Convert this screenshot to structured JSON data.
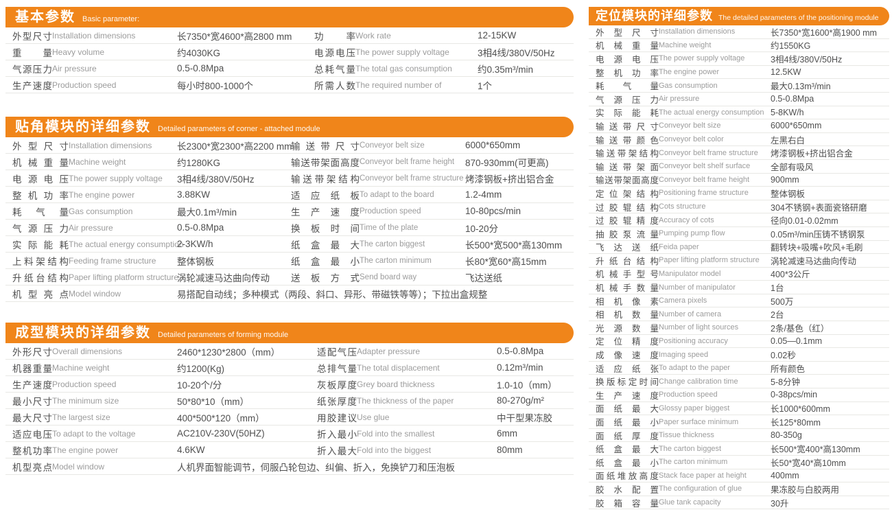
{
  "accent_color": "#F0851A",
  "text_color": "#4f4f4f",
  "muted_text_color": "#9c9c9c",
  "sections": [
    {
      "title_cn": "基本参数",
      "title_en": "Basic parameter:",
      "left_rows": [
        {
          "cn": "外型尺寸",
          "en": "Installation dimensions",
          "value": "长7350*宽4600*高2800 mm"
        },
        {
          "cn": "重量",
          "en": "Heavy volume",
          "value": "约4030KG"
        },
        {
          "cn": "气源压力",
          "en": "Air pressure",
          "value": "0.5-0.8Mpa"
        },
        {
          "cn": "生产速度",
          "en": "Production speed",
          "value": "每小时800-1000个"
        }
      ],
      "right_rows": [
        {
          "cn": "功率",
          "en": "Work rate",
          "value": "12-15KW"
        },
        {
          "cn": "电源电压",
          "en": "The power supply voltage",
          "value": "3相4线/380V/50Hz"
        },
        {
          "cn": "总耗气量",
          "en": "The total gas consumption",
          "value": "约0.35m³/min"
        },
        {
          "cn": "所需人数",
          "en": "The required number of",
          "value": "1个"
        }
      ]
    },
    {
      "title_cn": "贴角模块的详细参数",
      "title_en": "Detailed parameters of corner - attached module",
      "left_rows": [
        {
          "cn": "外型尺寸",
          "en": "Installation dimensions",
          "value": "长2300*宽2300*高2200 mm"
        },
        {
          "cn": "机械重量",
          "en": "Machine weight",
          "value": "约1280KG"
        },
        {
          "cn": "电源电压",
          "en": "The power supply voltage",
          "value": "3相4线/380V/50Hz"
        },
        {
          "cn": "整机功率",
          "en": "The engine power",
          "value": "3.88KW"
        },
        {
          "cn": "耗气量",
          "en": "Gas consumption",
          "value": "最大0.1m³/min"
        },
        {
          "cn": "气源压力",
          "en": "Air pressure",
          "value": "0.5-0.8Mpa"
        },
        {
          "cn": "实际能耗",
          "en": "The actual energy consumption",
          "value": "2-3KW/h"
        },
        {
          "cn": "上料架结构",
          "en": "Feeding frame structure",
          "value": "整体钢板"
        },
        {
          "cn": "升纸台结构",
          "en": "Paper lifting platform structure",
          "value": "涡轮减速马达曲向传动"
        }
      ],
      "right_rows": [
        {
          "cn": "输送带尺寸",
          "en": "Conveyor belt size",
          "value": "6000*650mm"
        },
        {
          "cn": "输送带架面高度",
          "en": "Conveyor belt frame height",
          "value": "870-930mm(可更高)"
        },
        {
          "cn": "输送带架结构",
          "en": "Conveyor belt frame structure",
          "value": "烤漆钢板+挤出铝合金"
        },
        {
          "cn": "适应纸板",
          "en": "To adapt to the board",
          "value": "1.2-4mm"
        },
        {
          "cn": "生产速度",
          "en": "Production speed",
          "value": "10-80pcs/min"
        },
        {
          "cn": "换板时间",
          "en": "Time of the plate",
          "value": "10-20分"
        },
        {
          "cn": "纸盒最大",
          "en": "The carton biggest",
          "value": "长500*宽500*高130mm"
        },
        {
          "cn": "纸盒最小",
          "en": "The carton minimum",
          "value": "长80*宽60*高15mm"
        },
        {
          "cn": "送板方式",
          "en": "Send board way",
          "value": "飞达送纸"
        }
      ],
      "span_row": {
        "cn": "机型亮点",
        "en": "Model window",
        "value": "易搭配自动线；多种模式（两段、斜口、异形、带磁铁等等）；下拉出盒规整"
      }
    },
    {
      "title_cn": "成型模块的详细参数",
      "title_en": "Detailed parameters of forming module",
      "left_rows": [
        {
          "cn": "外形尺寸",
          "en": "Overall dimensions",
          "value": "2460*1230*2800（mm）"
        },
        {
          "cn": "机器重量",
          "en": "Machine weight",
          "value": "约1200(Kg)"
        },
        {
          "cn": "生产速度",
          "en": "Production speed",
          "value": "10-20个/分"
        },
        {
          "cn": "最小尺寸",
          "en": "The minimum size",
          "value": "50*80*10（mm）"
        },
        {
          "cn": "最大尺寸",
          "en": "The largest size",
          "value": "400*500*120（mm）"
        },
        {
          "cn": "适应电压",
          "en": "To adapt to the voltage",
          "value": "AC210V-230V(50HZ)"
        },
        {
          "cn": "整机功率",
          "en": "The engine power",
          "value": "4.6KW"
        }
      ],
      "right_rows": [
        {
          "cn": "适配气压",
          "en": "Adapter pressure",
          "value": "0.5-0.8Mpa"
        },
        {
          "cn": "总排气量",
          "en": "The total displacement",
          "value": "0.12m³/min"
        },
        {
          "cn": "灰板厚度",
          "en": "Grey board thickness",
          "value": "1.0-10（mm）"
        },
        {
          "cn": "纸张厚度",
          "en": "The thickness of the paper",
          "value": "80-270g/m²"
        },
        {
          "cn": "用胶建议",
          "en": "Use glue",
          "value": "中干型果冻胶"
        },
        {
          "cn": "折入最小",
          "en": "Fold into the smallest",
          "value": "6mm"
        },
        {
          "cn": "折入最大",
          "en": "Fold into the biggest",
          "value": "80mm"
        }
      ],
      "span_row": {
        "cn": "机型亮点",
        "en": "Model window",
        "value": "人机界面智能调节，伺服凸轮包边、纠偏、折入，免换铲刀和压泡板"
      }
    },
    {
      "title_cn": "定位模块的详细参数",
      "title_en": "The detailed parameters of the positioning module",
      "rows": [
        {
          "cn": "外型尺寸",
          "en": "Installation dimensions",
          "value": "长7350*宽1600*高1900 mm"
        },
        {
          "cn": "机械重量",
          "en": "Machine weight",
          "value": "约1550KG"
        },
        {
          "cn": "电源电压",
          "en": "The power supply voltage",
          "value": "3相4线/380V/50Hz"
        },
        {
          "cn": "整机功率",
          "en": "The engine power",
          "value": "12.5KW"
        },
        {
          "cn": "耗气量",
          "en": "Gas consumption",
          "value": "最大0.13m³/min"
        },
        {
          "cn": "气源压力",
          "en": "Air pressure",
          "value": "0.5-0.8Mpa"
        },
        {
          "cn": "实际能耗",
          "en": "The actual energy consumption",
          "value": "5-8KW/h"
        },
        {
          "cn": "输送带尺寸",
          "en": "Conveyor belt size",
          "value": "6000*650mm"
        },
        {
          "cn": "输送带颜色",
          "en": "Conveyor belt color",
          "value": "左黑右白"
        },
        {
          "cn": "输送带架结构",
          "en": "Conveyor belt frame structure",
          "value": "烤漆钢板+挤出铝合金"
        },
        {
          "cn": "输送带架面",
          "en": "Conveyor belt shelf surface",
          "value": "全部有吸风"
        },
        {
          "cn": "输送带架面高度",
          "en": "Conveyor belt frame height",
          "value": "900mm"
        },
        {
          "cn": "定位架结构",
          "en": "Positioning frame structure",
          "value": "整体钢板"
        },
        {
          "cn": "过胶辊结构",
          "en": "Cots structure",
          "value": "304不锈钢+表面瓷铬研磨"
        },
        {
          "cn": "过胶辊精度",
          "en": "Accuracy of cots",
          "value": "径向0.01-0.02mm"
        },
        {
          "cn": "抽胶泵流量",
          "en": "Pumping pump flow",
          "value": "0.05m³/min压铸不锈钢泵"
        },
        {
          "cn": "飞达送纸",
          "en": "Feida paper",
          "value": "翻转块+吸嘴+吹风+毛刷"
        },
        {
          "cn": "升纸台结构",
          "en": "Paper lifting platform structure",
          "value": "涡轮减速马达曲向传动"
        },
        {
          "cn": "机械手型号",
          "en": "Manipulator model",
          "value": "400*3公斤"
        },
        {
          "cn": "机械手数量",
          "en": "Number of manipulator",
          "value": "1台"
        },
        {
          "cn": "相机像素",
          "en": "Camera pixels",
          "value": "500万"
        },
        {
          "cn": "相机数量",
          "en": "Number of camera",
          "value": "2台"
        },
        {
          "cn": "光源数量",
          "en": "Number of light sources",
          "value": "2条/基色（红）"
        },
        {
          "cn": "定位精度",
          "en": "Positioning accuracy",
          "value": "0.05—0.1mm"
        },
        {
          "cn": "成像速度",
          "en": "Imaging speed",
          "value": "0.02秒"
        },
        {
          "cn": "适应纸张",
          "en": "To adapt to the paper",
          "value": "所有颜色"
        },
        {
          "cn": "换版标定时间",
          "en": "Change calibration time",
          "value": "5-8分钟"
        },
        {
          "cn": "生产速度",
          "en": "Production speed",
          "value": "0-38pcs/min"
        },
        {
          "cn": "面纸最大",
          "en": "Glossy paper biggest",
          "value": "长1000*600mm"
        },
        {
          "cn": "面纸最小",
          "en": "Paper surface minimum",
          "value": "长125*80mm"
        },
        {
          "cn": "面纸厚度",
          "en": "Tissue thickness",
          "value": "80-350g"
        },
        {
          "cn": "纸盒最大",
          "en": "The carton biggest",
          "value": "长500*宽400*高130mm"
        },
        {
          "cn": "纸盒最小",
          "en": "The carton minimum",
          "value": "长50*宽40*高10mm"
        },
        {
          "cn": "面纸堆放高度",
          "en": "Stack face paper at height",
          "value": "400mm"
        },
        {
          "cn": "胶水配置",
          "en": "The configuration of glue",
          "value": "果冻胶与白胶两用"
        },
        {
          "cn": "胶箱容量",
          "en": "Glue tank capacity",
          "value": "30升"
        }
      ]
    }
  ]
}
